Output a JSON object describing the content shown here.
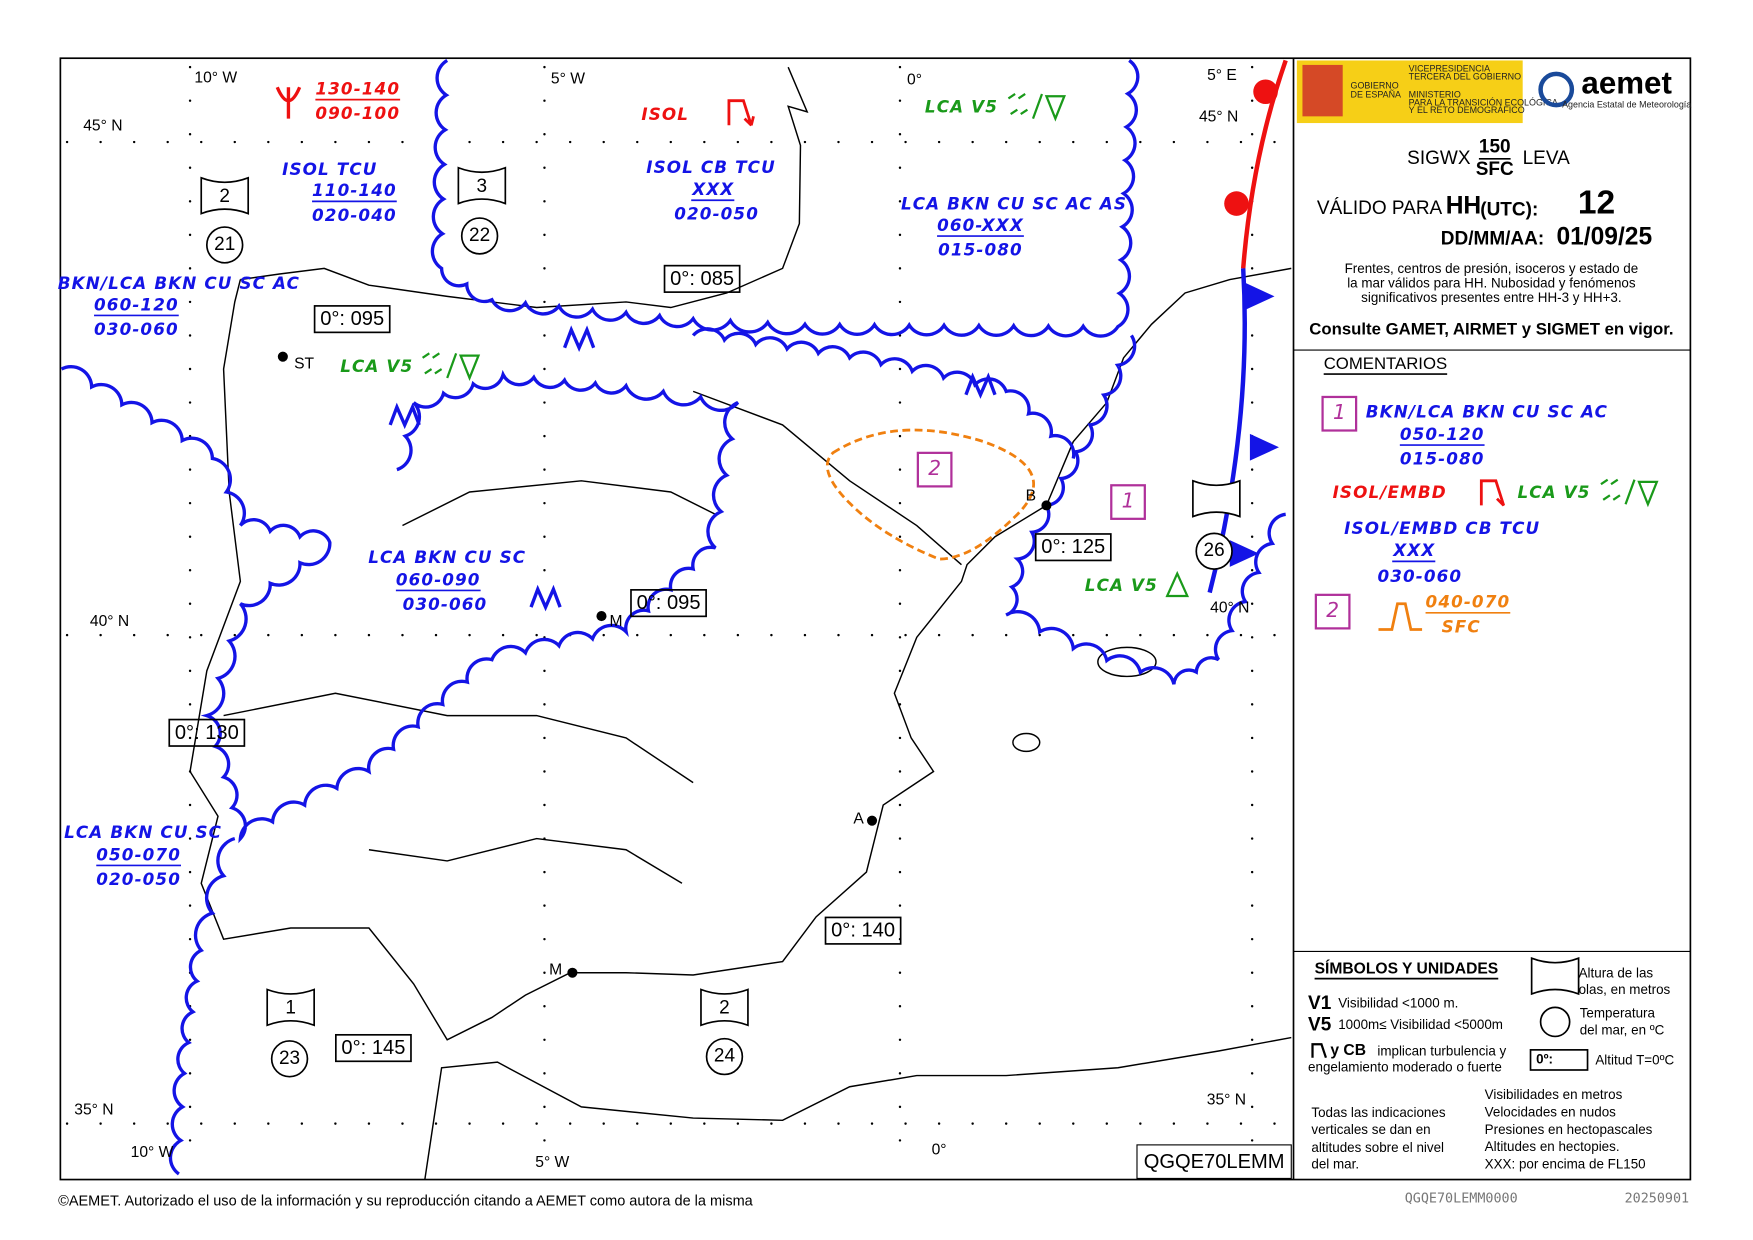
{
  "header": {
    "product": "SIGWX",
    "level_top": "150",
    "level_bottom": "SFC",
    "region": "LEVA",
    "valid_label": "VÁLIDO PARA",
    "hh": "HH",
    "utc": "(UTC):",
    "hour": "12",
    "date_label": "DD/MM/AA:",
    "date": "01/09/25",
    "description": [
      "Frentes, centros de presión, isoceros y estado de",
      "la mar válidos para HH. Nubosidad y fenómenos",
      "significativos presentes entre HH-3 y HH+3."
    ],
    "consult": "Consulte GAMET, AIRMET y SIGMET en vigor."
  },
  "logos": {
    "gov": [
      "GOBIERNO",
      "DE ESPAÑA"
    ],
    "ministry": [
      "VICEPRESIDENCIA",
      "TERCERA DEL GOBIERNO",
      "MINISTERIO",
      "PARA LA TRANSICIÓN ECOLÓGICA",
      "Y EL RETO DEMOGRÁFICO"
    ],
    "aemet": "aemet",
    "aemet_sub": "Agencia Estatal de Meteorología"
  },
  "map": {
    "grid_labels": [
      "10° W",
      "5° W",
      "0°",
      "5° E",
      "45° N",
      "45° N",
      "40° N",
      "40° N",
      "35° N",
      "35° N",
      "10° W",
      "5° W",
      "0°"
    ],
    "cities": [
      "ST",
      "M",
      "B",
      "A",
      "M"
    ],
    "freezing_levels": [
      "0°: 095",
      "0°: 085",
      "0°: 095",
      "0°: 130",
      "0°: 125",
      "0°: 140",
      "0°: 145"
    ],
    "sea_state": [
      {
        "wave": "2",
        "temp": "21"
      },
      {
        "wave": "3",
        "temp": "22"
      },
      {
        "wave": "1",
        "temp": "23"
      },
      {
        "wave": "2",
        "temp": "24"
      },
      {
        "temp": "26"
      }
    ],
    "areas": [
      [
        "130-140",
        "090-100"
      ],
      [
        "ISOL TCU",
        "110-140",
        "020-040"
      ],
      [
        "ISOL"
      ],
      [
        "ISOL CB TCU",
        "XXX",
        "020-050"
      ],
      [
        "LCA V5"
      ],
      [
        "LCA BKN CU SC AC AS",
        "060-XXX",
        "015-080"
      ],
      [
        "BKN/LCA BKN CU SC AC",
        "060-120",
        "030-060"
      ],
      [
        "LCA V5"
      ],
      [
        "LCA BKN CU SC",
        "060-090",
        "030-060"
      ],
      [
        "LCA V5"
      ],
      [
        "LCA BKN CU SC",
        "050-070",
        "020-050"
      ]
    ],
    "zones": [
      "2",
      "1"
    ],
    "code": "QGQE70LEMM"
  },
  "comments": {
    "title": "COMENTARIOS",
    "items": [
      {
        "number": "1",
        "cloud": [
          "BKN/LCA BKN CU SC AC",
          "050-120",
          "015-080"
        ],
        "icing": "ISOL/EMBD",
        "vis": "LCA V5",
        "cb": [
          "ISOL/EMBD CB TCU",
          "XXX",
          "030-060"
        ]
      },
      {
        "number": "2",
        "turbulence": [
          "040-070",
          "SFC"
        ]
      }
    ]
  },
  "legend": {
    "title": "SÍMBOLOS Y UNIDADES",
    "wave": [
      "Altura de las",
      "olas, en metros"
    ],
    "v1": "V1",
    "v1_text": "Visibilidad <1000 m.",
    "v5": "V5",
    "v5_text": "1000m≤ Visibilidad <5000m",
    "temp": [
      "Temperatura",
      "del mar, en ºC"
    ],
    "cb": "y CB",
    "cb_text": [
      "implican turbulencia y",
      "engelamiento moderado o fuerte"
    ],
    "freezing": "0º:",
    "freezing_text": "Altitud T=0ºC",
    "notes": [
      "Todas las indicaciones",
      "verticales se dan en",
      "altitudes sobre el nivel",
      "del mar."
    ],
    "units": [
      "Visibilidades en metros",
      "Velocidades en nudos",
      "Presiones en hectopascales",
      "Altitudes en hectopies.",
      "XXX: por encima de FL150"
    ]
  },
  "footer": {
    "copyright": "©AEMET. Autorizado el uso de la información y su reproducción citando a AEMET como autora de la misma",
    "code": "QGQE70LEMM0000",
    "date": "20250901"
  }
}
